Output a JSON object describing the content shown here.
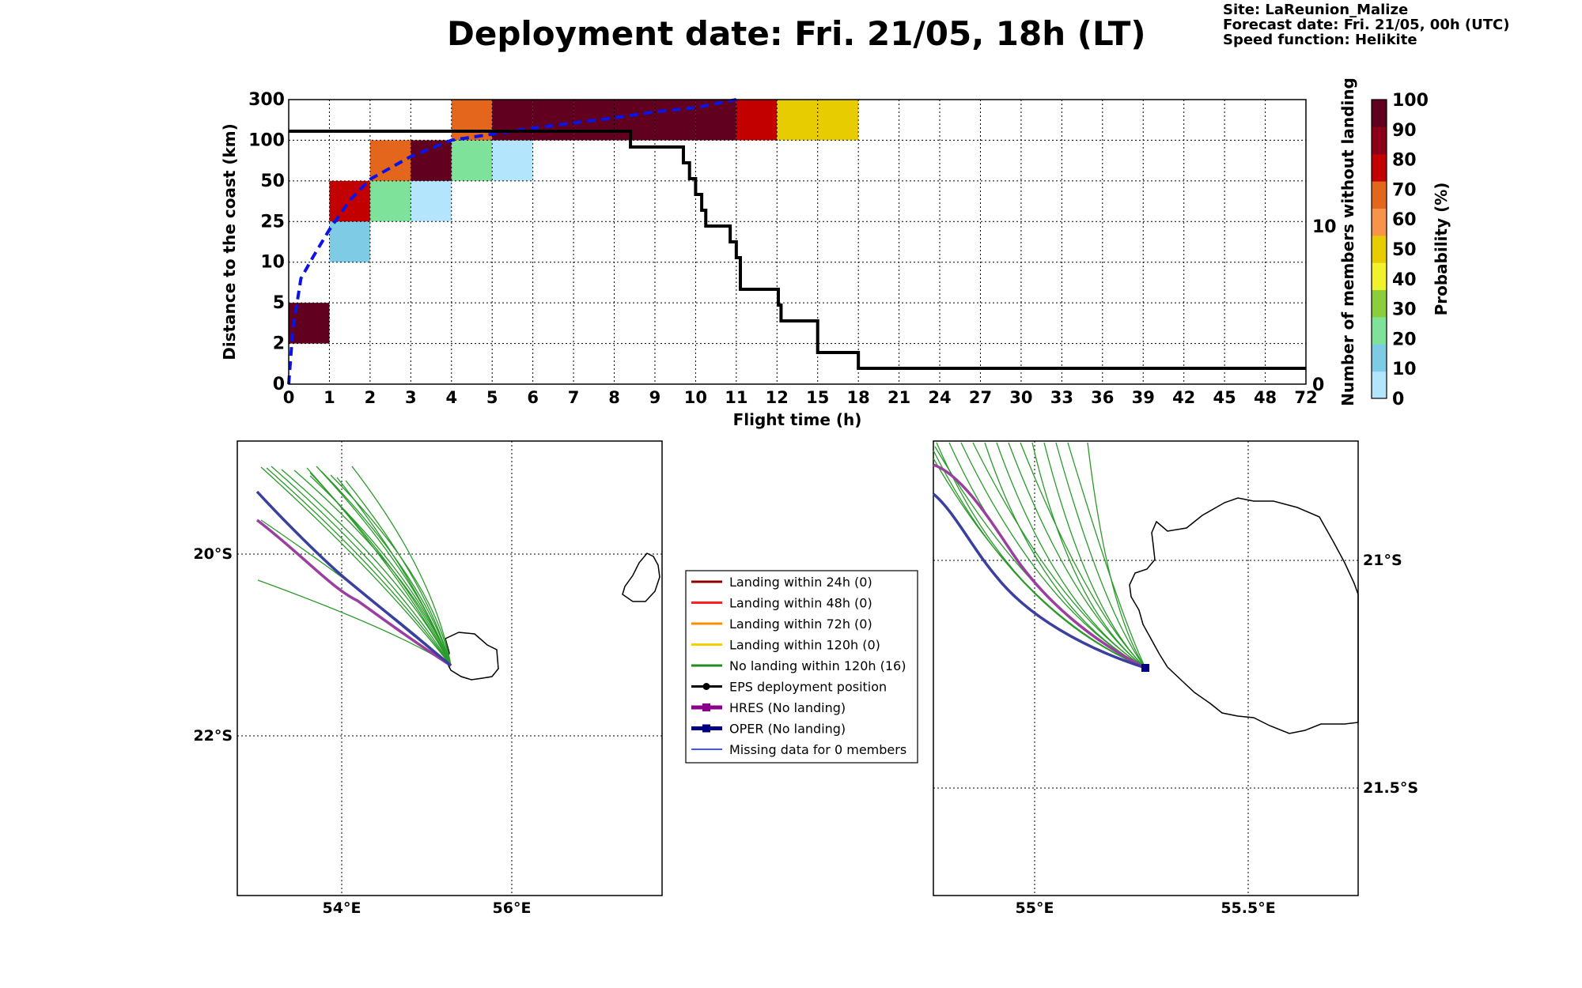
{
  "title": "Deployment date: Fri. 21/05, 18h (LT)",
  "meta": {
    "site": "Site: LaReunion_Malize",
    "forecast": "Forecast date: Fri. 21/05, 00h (UTC)",
    "speed": "Speed function: Helikite"
  },
  "chart_data": [
    {
      "type": "heatmap",
      "xlabel": "Flight time (h)",
      "ylabel": "Distance to the coast (km)",
      "y2label": "Number of members without landing",
      "x_ticks": [
        "0",
        "1",
        "2",
        "3",
        "4",
        "5",
        "6",
        "7",
        "8",
        "9",
        "10",
        "11",
        "12",
        "15",
        "18",
        "21",
        "24",
        "27",
        "30",
        "33",
        "36",
        "39",
        "42",
        "45",
        "48",
        "72"
      ],
      "y_ticks": [
        "0",
        "2",
        "5",
        "10",
        "25",
        "50",
        "100",
        "300"
      ],
      "y2_ticks": [
        "0",
        "10"
      ],
      "y2lim": [
        0,
        18
      ],
      "colorbar": {
        "label": "Probability (%)",
        "ticks": [
          "0",
          "10",
          "20",
          "30",
          "40",
          "50",
          "60",
          "70",
          "80",
          "90",
          "100"
        ],
        "colors": [
          "#b3e5fc",
          "#7ecbe5",
          "#7ee29a",
          "#8ccd3c",
          "#f2f22c",
          "#e6cc00",
          "#f7944a",
          "#e4651c",
          "#c20000",
          "#8b0016",
          "#620020"
        ]
      },
      "cells": [
        {
          "x": 0,
          "y": 1,
          "p": 100
        },
        {
          "x": 1,
          "y": 3,
          "p": 10
        },
        {
          "x": 1,
          "y": 4,
          "p": 80
        },
        {
          "x": 2,
          "y": 4,
          "p": 20
        },
        {
          "x": 2,
          "y": 5,
          "p": 70
        },
        {
          "x": 3,
          "y": 4,
          "p": 0
        },
        {
          "x": 3,
          "y": 5,
          "p": 100
        },
        {
          "x": 4,
          "y": 5,
          "p": 20
        },
        {
          "x": 4,
          "y": 6,
          "p": 70
        },
        {
          "x": 5,
          "y": 5,
          "p": 0
        },
        {
          "x": 5,
          "y": 6,
          "p": 100
        },
        {
          "x": 6,
          "y": 6,
          "p": 100
        },
        {
          "x": 7,
          "y": 6,
          "p": 100
        },
        {
          "x": 8,
          "y": 6,
          "p": 100
        },
        {
          "x": 9,
          "y": 6,
          "p": 100
        },
        {
          "x": 10,
          "y": 6,
          "p": 100
        },
        {
          "x": 11,
          "y": 6,
          "p": 80
        },
        {
          "x": 12,
          "y": 6,
          "p": 50
        },
        {
          "x": 13,
          "y": 6,
          "p": 50
        }
      ],
      "members_without_landing": [
        {
          "t": 0,
          "n": 16
        },
        {
          "t": 8.3,
          "n": 16
        },
        {
          "t": 8.4,
          "n": 15
        },
        {
          "t": 9.6,
          "n": 15
        },
        {
          "t": 9.7,
          "n": 14
        },
        {
          "t": 9.85,
          "n": 13
        },
        {
          "t": 10,
          "n": 12
        },
        {
          "t": 10.15,
          "n": 11
        },
        {
          "t": 10.25,
          "n": 10
        },
        {
          "t": 10.8,
          "n": 10
        },
        {
          "t": 10.85,
          "n": 9
        },
        {
          "t": 11.0,
          "n": 8
        },
        {
          "t": 11.1,
          "n": 6
        },
        {
          "t": 12,
          "n": 6
        },
        {
          "t": 12.1,
          "n": 5
        },
        {
          "t": 12.3,
          "n": 4
        },
        {
          "t": 14.8,
          "n": 4
        },
        {
          "t": 15,
          "n": 2
        },
        {
          "t": 17.8,
          "n": 2
        },
        {
          "t": 18,
          "n": 1
        },
        {
          "t": 72,
          "n": 1
        }
      ],
      "median_distance_curve": [
        {
          "t": 0,
          "y": 0
        },
        {
          "t": 0.1,
          "y": 3
        },
        {
          "t": 0.3,
          "y": 8
        },
        {
          "t": 0.6,
          "y": 12
        },
        {
          "t": 1,
          "y": 22
        },
        {
          "t": 1.5,
          "y": 38
        },
        {
          "t": 2,
          "y": 52
        },
        {
          "t": 3,
          "y": 80
        },
        {
          "t": 4,
          "y": 100
        },
        {
          "t": 5,
          "y": 130
        },
        {
          "t": 6,
          "y": 160
        },
        {
          "t": 7,
          "y": 185
        },
        {
          "t": 8,
          "y": 210
        },
        {
          "t": 9,
          "y": 240
        },
        {
          "t": 10,
          "y": 260
        },
        {
          "t": 11,
          "y": 300
        }
      ]
    },
    {
      "type": "map",
      "lat_labels": [
        "20°S",
        "22°S"
      ],
      "lon_labels": [
        "54°E",
        "56°E"
      ]
    },
    {
      "type": "map",
      "lat_labels": [
        "21°S",
        "21.5°S"
      ],
      "lon_labels": [
        "55°E",
        "55.5°E"
      ]
    }
  ],
  "legend": [
    {
      "label": "Landing within 24h (0)",
      "color": "#8b0000",
      "marker": "none",
      "width": 2
    },
    {
      "label": "Landing within 48h (0)",
      "color": "#ff2020",
      "marker": "none",
      "width": 2
    },
    {
      "label": "Landing within 72h (0)",
      "color": "#ff8c00",
      "marker": "none",
      "width": 2
    },
    {
      "label": "Landing within 120h (0)",
      "color": "#f5d000",
      "marker": "none",
      "width": 2
    },
    {
      "label": "No landing within 120h (16)",
      "color": "#228b22",
      "marker": "none",
      "width": 2
    },
    {
      "label": "EPS deployment position",
      "color": "#000000",
      "marker": "circle",
      "width": 2
    },
    {
      "label": "HRES (No landing)",
      "color": "#8b008b",
      "marker": "square",
      "width": 4
    },
    {
      "label": "OPER (No landing)",
      "color": "#000080",
      "marker": "square",
      "width": 4
    },
    {
      "label": "Missing data for 0 members",
      "color": "#4455ff",
      "marker": "none",
      "width": 1
    }
  ]
}
